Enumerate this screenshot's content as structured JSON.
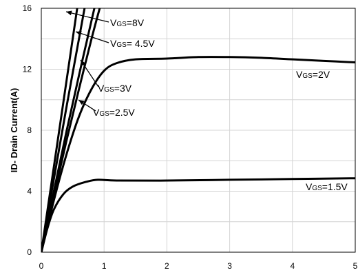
{
  "chart_data": {
    "type": "line",
    "title": "",
    "xlabel": "",
    "ylabel": "ID- Drain Current(A)",
    "xlim": [
      0,
      5
    ],
    "ylim": [
      0,
      16
    ],
    "xticks": [
      "0",
      "1",
      "2",
      "3",
      "4",
      "5"
    ],
    "yticks": [
      "0",
      "4",
      "8",
      "12",
      "16"
    ],
    "grid": true,
    "series": [
      {
        "name": "VGS=1.5V",
        "x": [
          0,
          0.1,
          0.2,
          0.35,
          0.5,
          0.7,
          0.9,
          1.2,
          2,
          3,
          4,
          5
        ],
        "y": [
          0,
          1.6,
          2.8,
          3.8,
          4.3,
          4.6,
          4.75,
          4.7,
          4.7,
          4.75,
          4.8,
          4.85
        ]
      },
      {
        "name": "VGS=2V",
        "x": [
          0,
          0.2,
          0.4,
          0.6,
          0.8,
          1.0,
          1.2,
          1.5,
          2,
          2.5,
          3,
          3.5,
          4,
          4.5,
          5
        ],
        "y": [
          0,
          3.4,
          6.4,
          8.9,
          10.7,
          11.9,
          12.4,
          12.65,
          12.7,
          12.8,
          12.8,
          12.75,
          12.65,
          12.55,
          12.45
        ]
      },
      {
        "name": "VGS=2.5V",
        "x": [
          0,
          0.2,
          0.4,
          0.6,
          0.8,
          0.95
        ],
        "y": [
          0,
          3.7,
          7.3,
          10.7,
          14,
          16.3
        ]
      },
      {
        "name": "VGS=3V",
        "x": [
          0,
          0.2,
          0.4,
          0.6,
          0.8,
          0.97
        ],
        "y": [
          0,
          4,
          7.9,
          11.6,
          15.2,
          18.2
        ]
      },
      {
        "name": "VGS=4.5V",
        "x": [
          0,
          0.2,
          0.4,
          0.6,
          0.8
        ],
        "y": [
          0,
          4.8,
          9.5,
          14,
          18.5
        ]
      },
      {
        "name": "VGS=8V",
        "x": [
          0,
          0.2,
          0.4,
          0.6
        ],
        "y": [
          0,
          5.6,
          11.2,
          16.8
        ]
      }
    ],
    "annotations": [
      {
        "text": "=8V",
        "sub": "GS"
      },
      {
        "text": "= 4.5V",
        "sub": "GS"
      },
      {
        "text": "=3V",
        "sub": "GS"
      },
      {
        "text": "=2.5V",
        "sub": "GS"
      },
      {
        "text": "=2V",
        "sub": "GS"
      },
      {
        "text": "=1.5V",
        "sub": "GS"
      }
    ],
    "annotation_prefix": "V"
  }
}
